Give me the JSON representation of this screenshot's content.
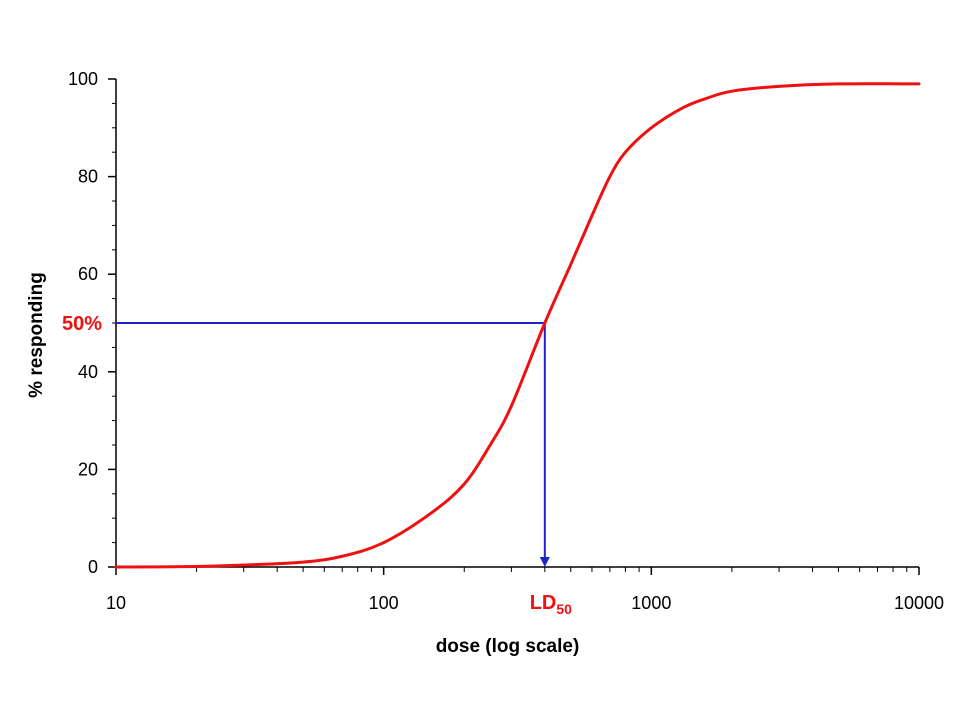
{
  "chart_data": {
    "type": "line",
    "xlabel": "dose (log scale)",
    "ylabel": "% responding",
    "x_scale": "log",
    "xlim": [
      10,
      10000
    ],
    "ylim": [
      0,
      100
    ],
    "x_ticks": [
      10,
      100,
      1000,
      10000
    ],
    "x_tick_labels": [
      "10",
      "100",
      "1000",
      "10000"
    ],
    "y_ticks": [
      0,
      20,
      40,
      60,
      80,
      100
    ],
    "y_tick_labels": [
      "0",
      "20",
      "40",
      "60",
      "80",
      "100"
    ],
    "grid": false,
    "legend": "none",
    "series": [
      {
        "color": "#ee1111",
        "x": [
          10,
          20,
          30,
          50,
          70,
          100,
          150,
          200,
          250,
          300,
          400,
          500,
          600,
          700,
          800,
          1000,
          1300,
          1600,
          2000,
          3000,
          5000,
          10000
        ],
        "y": [
          0,
          0.1,
          0.4,
          1,
          2.2,
          5,
          11,
          17,
          25,
          33,
          50,
          62,
          72,
          80,
          85,
          90,
          94,
          96,
          97.5,
          98.5,
          99,
          99
        ]
      }
    ],
    "annotations": {
      "ld50": {
        "x": 400,
        "y": 50,
        "label_main": "LD",
        "label_sub": "50",
        "y_label": "50%",
        "label_color": "#ee1111",
        "line_color": "#2222cc"
      }
    }
  }
}
